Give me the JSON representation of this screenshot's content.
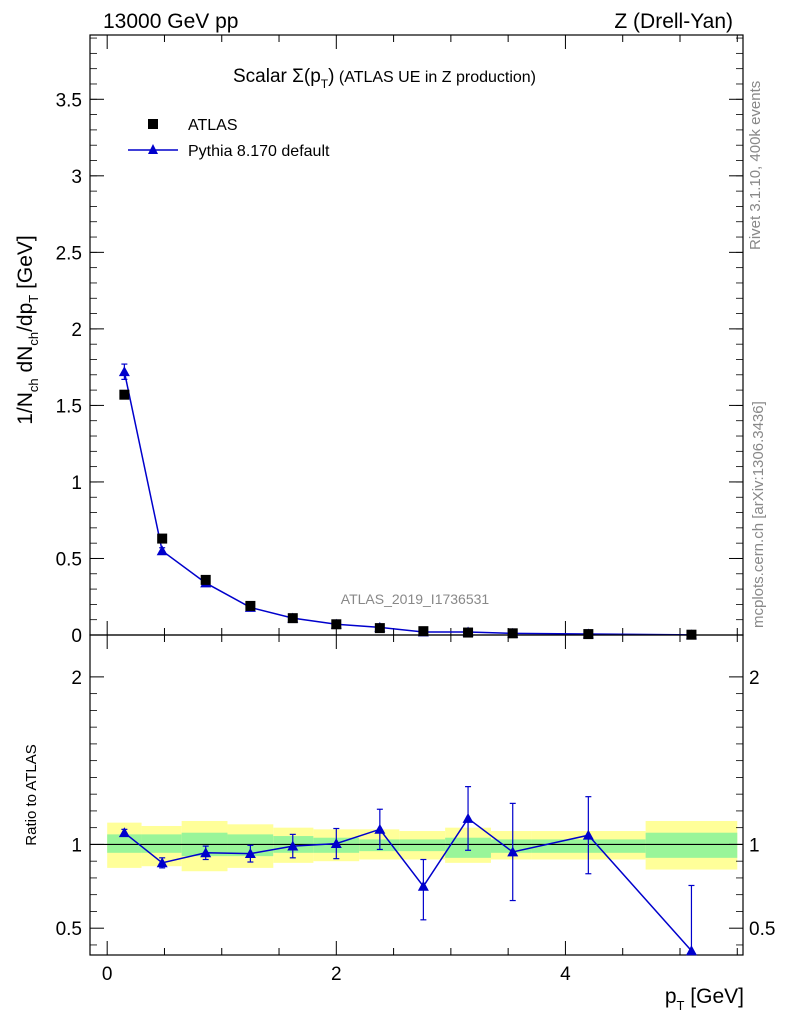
{
  "header": {
    "left": "13000 GeV pp",
    "right": "Z (Drell-Yan)"
  },
  "title": {
    "prefix": "Scalar ",
    "sigma": "Σ(p",
    "sub": "T",
    "suffix": ")",
    "rest": " (ATLAS UE in Z production)"
  },
  "side_text": {
    "rivet": "Rivet 3.1.10,  400k events",
    "mcplots": "mcplots.cern.ch [arXiv:1306.3436]"
  },
  "analysis_label": "ATLAS_2019_I1736531",
  "axes": {
    "ylabel_main": {
      "a": "1/N",
      "a_sub": "ch",
      "b": " dN",
      "b_sub": "ch",
      "c": "/dp",
      "c_sub": "T",
      "d": " [GeV]"
    },
    "ylabel_ratio": "Ratio to ATLAS",
    "xlabel": {
      "main": "p",
      "sub": "T",
      "unit": " [GeV]"
    }
  },
  "legend": {
    "data_label": "ATLAS",
    "mc_label": "Pythia 8.170 default"
  },
  "colors": {
    "mc": "#0000cc",
    "data": "#000000",
    "band_inner": "#99f599",
    "band_outer": "#ffff99"
  },
  "chart_data": {
    "type": "scatter",
    "xlim": [
      -0.15,
      5.55
    ],
    "main": {
      "ylim": [
        0,
        3.92
      ],
      "yticks": [
        0,
        0.5,
        1,
        1.5,
        2,
        2.5,
        3,
        3.5
      ],
      "ytick_labels": [
        "0",
        "0.5",
        "1",
        "1.5",
        "2",
        "2.5",
        "3",
        "3.5"
      ]
    },
    "ratio": {
      "ylim": [
        0.34,
        2.25
      ],
      "yticks": [
        0.5,
        1,
        2
      ],
      "ytick_labels": [
        "0.5",
        "1",
        "2"
      ]
    },
    "xticks": [
      0,
      2,
      4
    ],
    "xtick_labels": [
      "0",
      "2",
      "4"
    ],
    "bins": [
      {
        "lo": 0.0,
        "hi": 0.3
      },
      {
        "lo": 0.3,
        "hi": 0.65
      },
      {
        "lo": 0.65,
        "hi": 1.05
      },
      {
        "lo": 1.05,
        "hi": 1.45
      },
      {
        "lo": 1.45,
        "hi": 1.8
      },
      {
        "lo": 1.8,
        "hi": 2.2
      },
      {
        "lo": 2.2,
        "hi": 2.55
      },
      {
        "lo": 2.55,
        "hi": 2.95
      },
      {
        "lo": 2.95,
        "hi": 3.35
      },
      {
        "lo": 3.35,
        "hi": 3.7
      },
      {
        "lo": 3.7,
        "hi": 4.7
      },
      {
        "lo": 4.7,
        "hi": 5.5
      }
    ],
    "x": [
      0.15,
      0.48,
      0.86,
      1.25,
      1.62,
      2.0,
      2.38,
      2.76,
      3.15,
      3.54,
      4.2,
      5.1
    ],
    "series": [
      {
        "name": "ATLAS",
        "values": [
          1.57,
          0.63,
          0.36,
          0.19,
          0.11,
          0.07,
          0.045,
          0.025,
          0.016,
          0.011,
          0.006,
          0.002
        ],
        "band_inner": [
          [
            0.95,
            1.06
          ],
          [
            0.95,
            1.06
          ],
          [
            0.93,
            1.07
          ],
          [
            0.93,
            1.06
          ],
          [
            0.95,
            1.05
          ],
          [
            0.95,
            1.04
          ],
          [
            0.96,
            1.03
          ],
          [
            0.96,
            1.03
          ],
          [
            0.92,
            1.04
          ],
          [
            0.95,
            1.03
          ],
          [
            0.95,
            1.03
          ],
          [
            0.92,
            1.07
          ]
        ],
        "band_outer": [
          [
            0.86,
            1.13
          ],
          [
            0.87,
            1.11
          ],
          [
            0.84,
            1.14
          ],
          [
            0.86,
            1.12
          ],
          [
            0.89,
            1.1
          ],
          [
            0.9,
            1.09
          ],
          [
            0.91,
            1.09
          ],
          [
            0.91,
            1.08
          ],
          [
            0.89,
            1.1
          ],
          [
            0.91,
            1.08
          ],
          [
            0.91,
            1.08
          ],
          [
            0.85,
            1.14
          ]
        ]
      },
      {
        "name": "Pythia 8.170 default",
        "values": [
          1.72,
          0.55,
          0.34,
          0.18,
          0.11,
          0.07,
          0.05,
          0.02,
          0.02,
          0.011,
          0.0065,
          0.0007
        ],
        "ratio": [
          1.07,
          0.89,
          0.95,
          0.945,
          0.99,
          1.005,
          1.09,
          0.75,
          1.155,
          0.955,
          1.055,
          0.365
        ],
        "ratio_err": [
          [
            0.02,
            0.02
          ],
          [
            0.03,
            0.03
          ],
          [
            0.04,
            0.04
          ],
          [
            0.05,
            0.05
          ],
          [
            0.07,
            0.07
          ],
          [
            0.09,
            0.09
          ],
          [
            0.12,
            0.12
          ],
          [
            0.2,
            0.16
          ],
          [
            0.19,
            0.19
          ],
          [
            0.29,
            0.29
          ],
          [
            0.23,
            0.23
          ],
          [
            0.0,
            0.39
          ]
        ],
        "err_main": [
          0.05,
          0.02,
          0.01,
          0.005,
          0.004,
          0.003,
          0.003,
          0.002,
          0.002,
          0.002,
          0.001,
          0.001
        ]
      }
    ]
  }
}
